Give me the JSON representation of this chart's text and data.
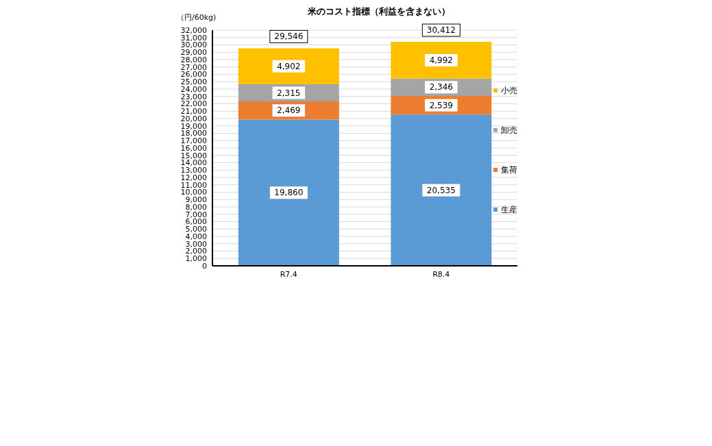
{
  "chart_data": {
    "type": "bar",
    "title": "米のコスト指標（利益を含まない）",
    "ylabel": "（円/60kg)",
    "categories": [
      "R7.4",
      "R8.4"
    ],
    "stacked": true,
    "series": [
      {
        "name": "生産",
        "color": "#5b9bd5",
        "values": [
          19860,
          20535
        ],
        "value_labels": [
          "19,860",
          "20,535"
        ]
      },
      {
        "name": "集荷",
        "color": "#ed7d31",
        "values": [
          2469,
          2539
        ],
        "value_labels": [
          "2,469",
          "2,539"
        ]
      },
      {
        "name": "卸売",
        "color": "#a5a5a5",
        "values": [
          2315,
          2346
        ],
        "value_labels": [
          "2,315",
          "2,346"
        ]
      },
      {
        "name": "小売",
        "color": "#ffc000",
        "values": [
          4902,
          4992
        ],
        "value_labels": [
          "4,902",
          "4,992"
        ]
      }
    ],
    "totals": [
      "29,546",
      "30,412"
    ],
    "ylim": [
      0,
      32000
    ],
    "yticks": [
      {
        "value": 0,
        "label": "0"
      },
      {
        "value": 1000,
        "label": "1,000"
      },
      {
        "value": 2000,
        "label": "2,000"
      },
      {
        "value": 3000,
        "label": "3,000"
      },
      {
        "value": 4000,
        "label": "4,000"
      },
      {
        "value": 5000,
        "label": "5,000"
      },
      {
        "value": 6000,
        "label": "6,000"
      },
      {
        "value": 7000,
        "label": "7,000"
      },
      {
        "value": 8000,
        "label": "8,000"
      },
      {
        "value": 9000,
        "label": "9,000"
      },
      {
        "value": 10000,
        "label": "10,000"
      },
      {
        "value": 11000,
        "label": "11,000"
      },
      {
        "value": 12000,
        "label": "12,000"
      },
      {
        "value": 13000,
        "label": "13,000"
      },
      {
        "value": 14000,
        "label": "14,000"
      },
      {
        "value": 15000,
        "label": "15,000"
      },
      {
        "value": 16000,
        "label": "16,000"
      },
      {
        "value": 17000,
        "label": "17,000"
      },
      {
        "value": 18000,
        "label": "18,000"
      },
      {
        "value": 19000,
        "label": "19,000"
      },
      {
        "value": 20000,
        "label": "20,000"
      },
      {
        "value": 21000,
        "label": "21,000"
      },
      {
        "value": 22000,
        "label": "22,000"
      },
      {
        "value": 23000,
        "label": "23,000"
      },
      {
        "value": 24000,
        "label": "24,000"
      },
      {
        "value": 25000,
        "label": "25,000"
      },
      {
        "value": 26000,
        "label": "26,000"
      },
      {
        "value": 27000,
        "label": "27,000"
      },
      {
        "value": 28000,
        "label": "28,000"
      },
      {
        "value": 29000,
        "label": "29,000"
      },
      {
        "value": 30000,
        "label": "30,000"
      },
      {
        "value": 31000,
        "label": "31,000"
      },
      {
        "value": 32000,
        "label": "32,000"
      }
    ],
    "grid": "y",
    "legend": "right"
  }
}
